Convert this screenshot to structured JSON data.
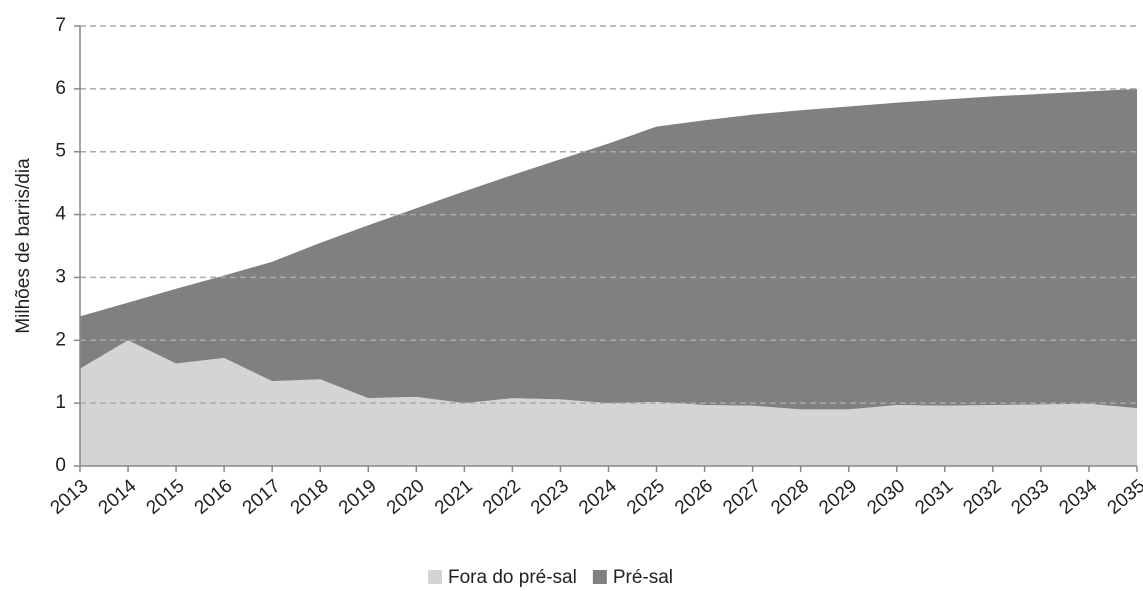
{
  "chart_data": {
    "type": "stacked_area",
    "y_label": "Milhões de barris/dia",
    "categories": [
      "2013",
      "2014",
      "2015",
      "2016",
      "2017",
      "2018",
      "2019",
      "2020",
      "2021",
      "2022",
      "2023",
      "2024",
      "2025",
      "2026",
      "2027",
      "2028",
      "2029",
      "2030",
      "2031",
      "2032",
      "2033",
      "2034",
      "2035"
    ],
    "series": [
      {
        "name": "Fora do pré-sal",
        "color": "#d4d4d6",
        "values": [
          1.55,
          2.0,
          1.63,
          1.72,
          1.35,
          1.38,
          1.08,
          1.1,
          1.0,
          1.08,
          1.06,
          1.0,
          1.02,
          0.97,
          0.96,
          0.9,
          0.9,
          0.97,
          0.96,
          0.97,
          0.98,
          0.99,
          0.92
        ]
      },
      {
        "name": "Pré-sal",
        "color": "#808083",
        "values": [
          0.83,
          0.6,
          1.19,
          1.31,
          1.9,
          2.17,
          2.75,
          3.0,
          3.37,
          3.55,
          3.82,
          4.13,
          4.38,
          4.53,
          4.63,
          4.76,
          4.82,
          4.81,
          4.87,
          4.91,
          4.94,
          4.97,
          5.08
        ]
      }
    ],
    "ylim": [
      0,
      7
    ],
    "yticks": [
      0,
      1,
      2,
      3,
      4,
      5,
      6,
      7
    ],
    "grid": true,
    "legend": "bottom"
  }
}
